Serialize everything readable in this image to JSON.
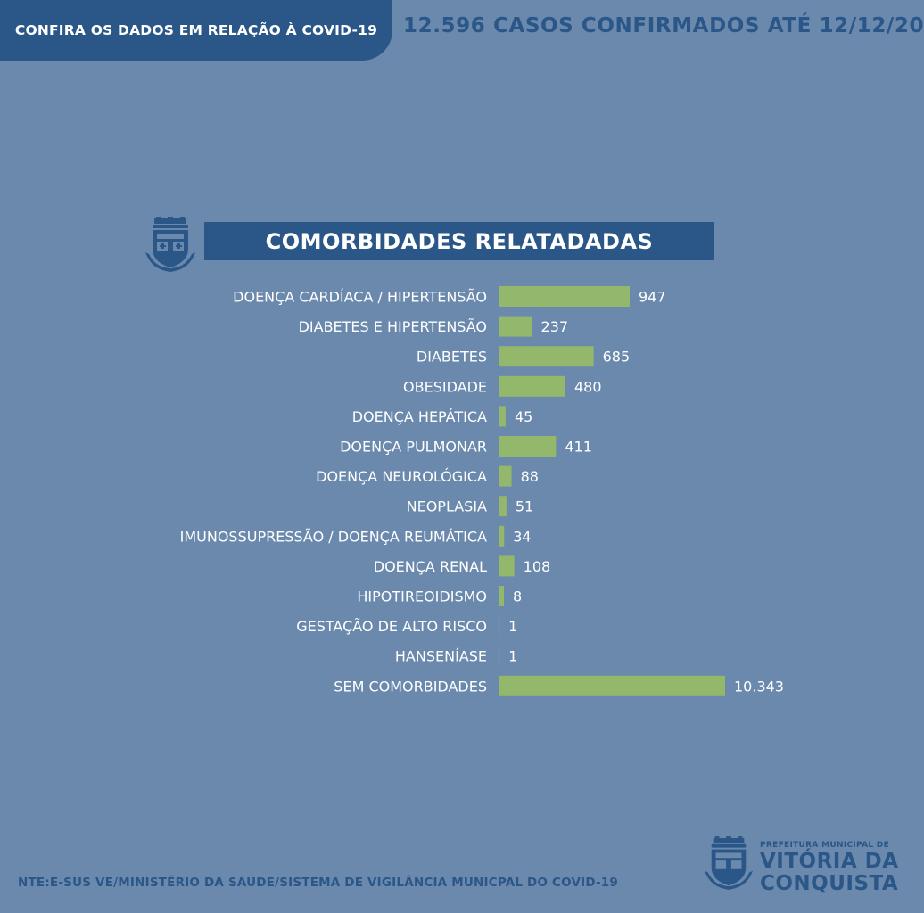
{
  "header": {
    "banner_label": "CONFIRA OS DADOS EM RELAÇÃO À COVID-19",
    "headline": "12.596 CASOS CONFIRMADOS ATÉ 12/12/20"
  },
  "colors": {
    "background": "#6a89ad",
    "brand_blue": "#2a5788",
    "bar_green": "#93b86b",
    "text_white": "#ffffff"
  },
  "chart_data": {
    "type": "bar",
    "orientation": "horizontal",
    "title": "COMORBIDADES RELATADADAS",
    "categories": [
      "DOENÇA CARDÍACA / HIPERTENSÃO",
      "DIABETES E HIPERTENSÃO",
      "DIABETES",
      "OBESIDADE",
      "DOENÇA HEPÁTICA",
      "DOENÇA PULMONAR",
      "DOENÇA NEUROLÓGICA",
      "NEOPLASIA",
      "IMUNOSSUPRESSÃO / DOENÇA REUMÁTICA",
      "DOENÇA RENAL",
      "HIPOTIREOIDISMO",
      "GESTAÇÃO DE ALTO RISCO",
      "HANSENÍASE",
      "SEM COMORBIDADES"
    ],
    "values": [
      947,
      237,
      685,
      480,
      45,
      411,
      88,
      51,
      34,
      108,
      8,
      1,
      1,
      10343
    ],
    "value_labels": [
      "947",
      "237",
      "685",
      "480",
      "45",
      "411",
      "88",
      "51",
      "34",
      "108",
      "8",
      "1",
      "1",
      "10.343"
    ],
    "grid": false,
    "legend": "none"
  },
  "footer": {
    "source": "NTE:E-SUS VE/MINISTÉRIO DA SAÚDE/SISTEMA DE VIGILÂNCIA MUNICPAL DO COVID-19",
    "brand_small": "PREFEITURA MUNICIPAL DE",
    "brand_line1": "VITÓRIA DA",
    "brand_line2": "CONQUISTA"
  },
  "icons": {
    "crest": "city-crest-icon"
  }
}
